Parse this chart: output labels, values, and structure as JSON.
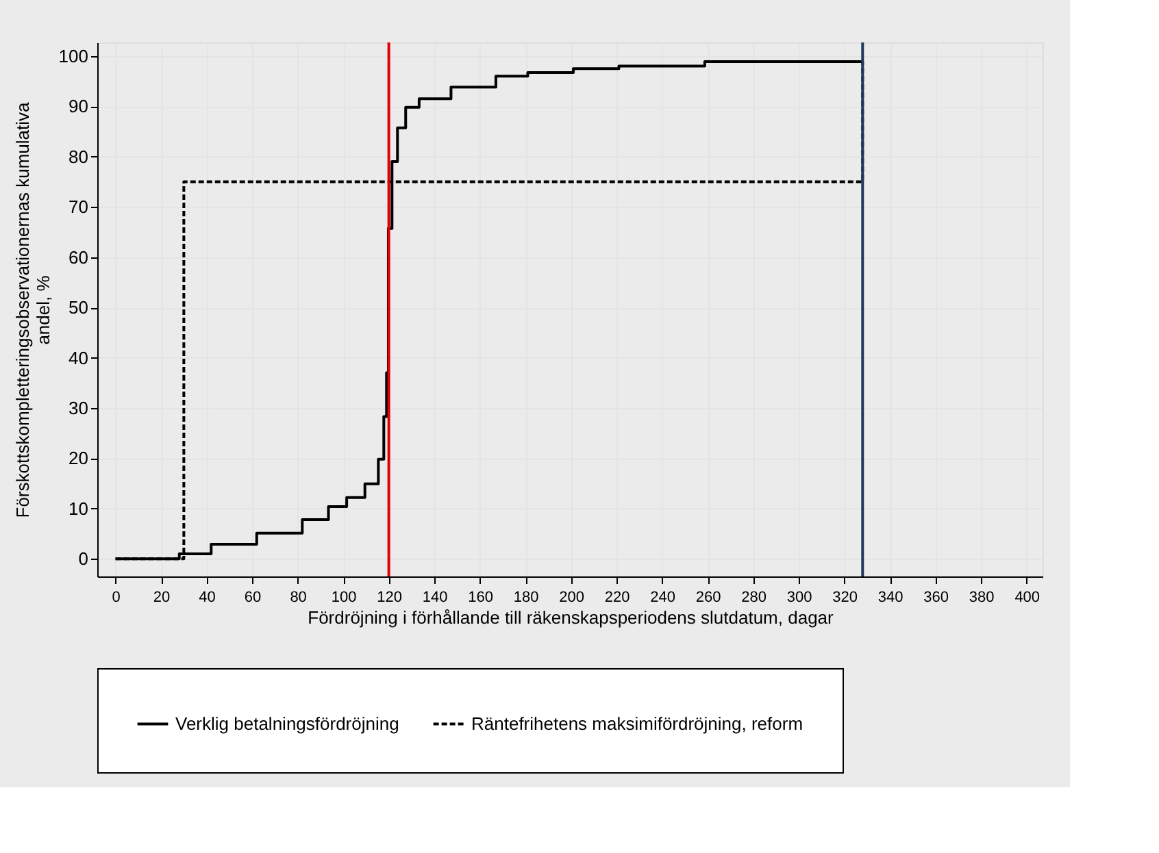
{
  "chart_data": {
    "type": "step",
    "xlabel": "Fördröjning i förhållande till räkenskapsperiodens slutdatum, dagar",
    "ylabel": "Förskottskompletteringsobservationernas kumulativa\nandel, %",
    "xlim": [
      -8,
      407
    ],
    "ylim": [
      -3.5,
      102.7
    ],
    "xticks": [
      0,
      20,
      40,
      60,
      80,
      100,
      120,
      140,
      160,
      180,
      200,
      220,
      240,
      260,
      280,
      300,
      320,
      340,
      360,
      380,
      400
    ],
    "yticks": [
      0,
      10,
      20,
      30,
      40,
      50,
      60,
      70,
      80,
      90,
      100
    ],
    "grid": true,
    "legend": "bottom",
    "series": [
      {
        "name": "Verklig betalningsfördröjning",
        "color": "#000000",
        "line_style": "solid",
        "x": [
          0,
          28,
          42,
          62,
          82,
          93.5,
          101.5,
          109.5,
          115.4,
          117.8,
          119,
          119.8,
          121.4,
          123.8,
          127.4,
          133.3,
          147.3,
          167,
          181,
          201,
          221,
          258.7,
          328
        ],
        "values": [
          0,
          1,
          2.9,
          5.1,
          7.8,
          10.4,
          12.2,
          14.9,
          19.8,
          28.3,
          37,
          65.7,
          79,
          85.7,
          89.8,
          91.5,
          93.8,
          96,
          96.7,
          97.5,
          98,
          98.9,
          98.9
        ]
      },
      {
        "name": "Räntefrihetens maksimifördröjning, reform",
        "color": "#000000",
        "line_style": "dashed",
        "x": [
          0,
          30,
          328,
          328
        ],
        "values": [
          0,
          75,
          98.9,
          98.9
        ]
      }
    ],
    "ref_lines": [
      {
        "axis": "x",
        "value": 120,
        "color": "#e00000"
      },
      {
        "axis": "x",
        "value": 328,
        "color": "#1f3a5a"
      }
    ]
  }
}
